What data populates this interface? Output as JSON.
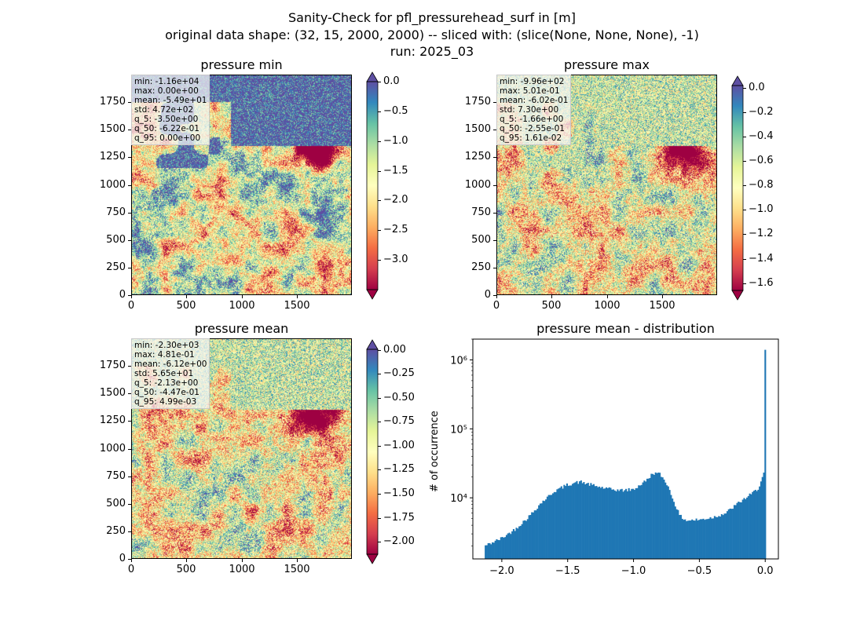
{
  "figure": {
    "title_lines": [
      "Sanity-Check for pfl_pressurehead_surf in [m]",
      "original data shape: (32, 15, 2000, 2000) -- sliced with: (slice(None, None, None), -1)",
      "run: 2025_03"
    ]
  },
  "chart_data": [
    {
      "type": "heatmap",
      "title": "pressure min",
      "x_ticks": [
        "0",
        "500",
        "1000",
        "1500"
      ],
      "y_ticks": [
        "0",
        "250",
        "500",
        "750",
        "1000",
        "1250",
        "1500",
        "1750"
      ],
      "xlim": [
        0,
        2000
      ],
      "ylim": [
        0,
        2000
      ],
      "colormap": "Spectral",
      "colorbar": {
        "min": -3.5,
        "max": 0.0,
        "extend": "both",
        "ticks": [
          "0.0",
          "−0.5",
          "−1.0",
          "−1.5",
          "−2.0",
          "−2.5",
          "−3.0"
        ],
        "tick_values": [
          0.0,
          -0.5,
          -1.0,
          -1.5,
          -2.0,
          -2.5,
          -3.0
        ]
      },
      "stats": [
        "min: -1.16e+04",
        "max: 0.00e+00",
        "mean: -5.49e+01",
        "std: 4.72e+02",
        "q_5: -3.50e+00",
        "q_50: -6.22e-01",
        "q_95: 0.00e+00"
      ]
    },
    {
      "type": "heatmap",
      "title": "pressure max",
      "x_ticks": [
        "0",
        "500",
        "1000",
        "1500"
      ],
      "y_ticks": [
        "0",
        "250",
        "500",
        "750",
        "1000",
        "1250",
        "1500",
        "1750"
      ],
      "xlim": [
        0,
        2000
      ],
      "ylim": [
        0,
        2000
      ],
      "colormap": "Spectral",
      "colorbar": {
        "min": -1.66,
        "max": 0.0161,
        "extend": "both",
        "ticks": [
          "0.0",
          "−0.2",
          "−0.4",
          "−0.6",
          "−0.8",
          "−1.0",
          "−1.2",
          "−1.4",
          "−1.6"
        ],
        "tick_values": [
          0.0,
          -0.2,
          -0.4,
          -0.6,
          -0.8,
          -1.0,
          -1.2,
          -1.4,
          -1.6
        ]
      },
      "stats": [
        "min: -9.96e+02",
        "max: 5.01e-01",
        "mean: -6.02e-01",
        "std: 7.30e+00",
        "q_5: -1.66e+00",
        "q_50: -2.55e-01",
        "q_95: 1.61e-02"
      ]
    },
    {
      "type": "heatmap",
      "title": "pressure mean",
      "x_ticks": [
        "0",
        "500",
        "1000",
        "1500"
      ],
      "y_ticks": [
        "0",
        "250",
        "500",
        "750",
        "1000",
        "1250",
        "1500",
        "1750"
      ],
      "xlim": [
        0,
        2000
      ],
      "ylim": [
        0,
        2000
      ],
      "colormap": "Spectral",
      "colorbar": {
        "min": -2.13,
        "max": 0.00499,
        "extend": "both",
        "ticks": [
          "0.00",
          "−0.25",
          "−0.50",
          "−0.75",
          "−1.00",
          "−1.25",
          "−1.50",
          "−1.75",
          "−2.00"
        ],
        "tick_values": [
          0.0,
          -0.25,
          -0.5,
          -0.75,
          -1.0,
          -1.25,
          -1.5,
          -1.75,
          -2.0
        ]
      },
      "stats": [
        "min: -2.30e+03",
        "max: 4.81e-01",
        "mean: -6.12e+00",
        "std: 5.65e+01",
        "q_5: -2.13e+00",
        "q_50: -4.47e-01",
        "q_95: 4.99e-03"
      ]
    },
    {
      "type": "bar",
      "title": "pressure mean - distribution",
      "xlabel": "",
      "ylabel": "# of occurrence",
      "yscale": "log",
      "xlim": [
        -2.22,
        0.1
      ],
      "ylim": [
        1300,
        2000000
      ],
      "x_ticks": [
        "−2.0",
        "−1.5",
        "−1.0",
        "−0.5",
        "0.0"
      ],
      "x_tick_values": [
        -2.0,
        -1.5,
        -1.0,
        -0.5,
        0.0
      ],
      "y_ticks": [
        "10⁴",
        "10⁵",
        "10⁶"
      ],
      "y_tick_values": [
        10000,
        100000,
        1000000
      ],
      "bar_color": "#1f77b4",
      "bins": {
        "start": -2.13,
        "end": 0.005
      },
      "profile_x": [
        -2.13,
        -2.0,
        -1.9,
        -1.8,
        -1.7,
        -1.6,
        -1.5,
        -1.45,
        -1.4,
        -1.3,
        -1.2,
        -1.1,
        -1.0,
        -0.9,
        -0.85,
        -0.8,
        -0.75,
        -0.7,
        -0.65,
        -0.6,
        -0.5,
        -0.4,
        -0.3,
        -0.2,
        -0.1,
        -0.05,
        -0.02,
        0.0
      ],
      "profile_y": [
        2000,
        2600,
        3500,
        5200,
        8500,
        12500,
        15500,
        16500,
        17000,
        15000,
        13500,
        12800,
        13200,
        18000,
        23000,
        22000,
        16500,
        9500,
        5500,
        4700,
        4800,
        5200,
        6000,
        8500,
        11500,
        14000,
        20000,
        26000
      ],
      "spike": {
        "x": 0.0,
        "value": 1400000
      }
    }
  ]
}
